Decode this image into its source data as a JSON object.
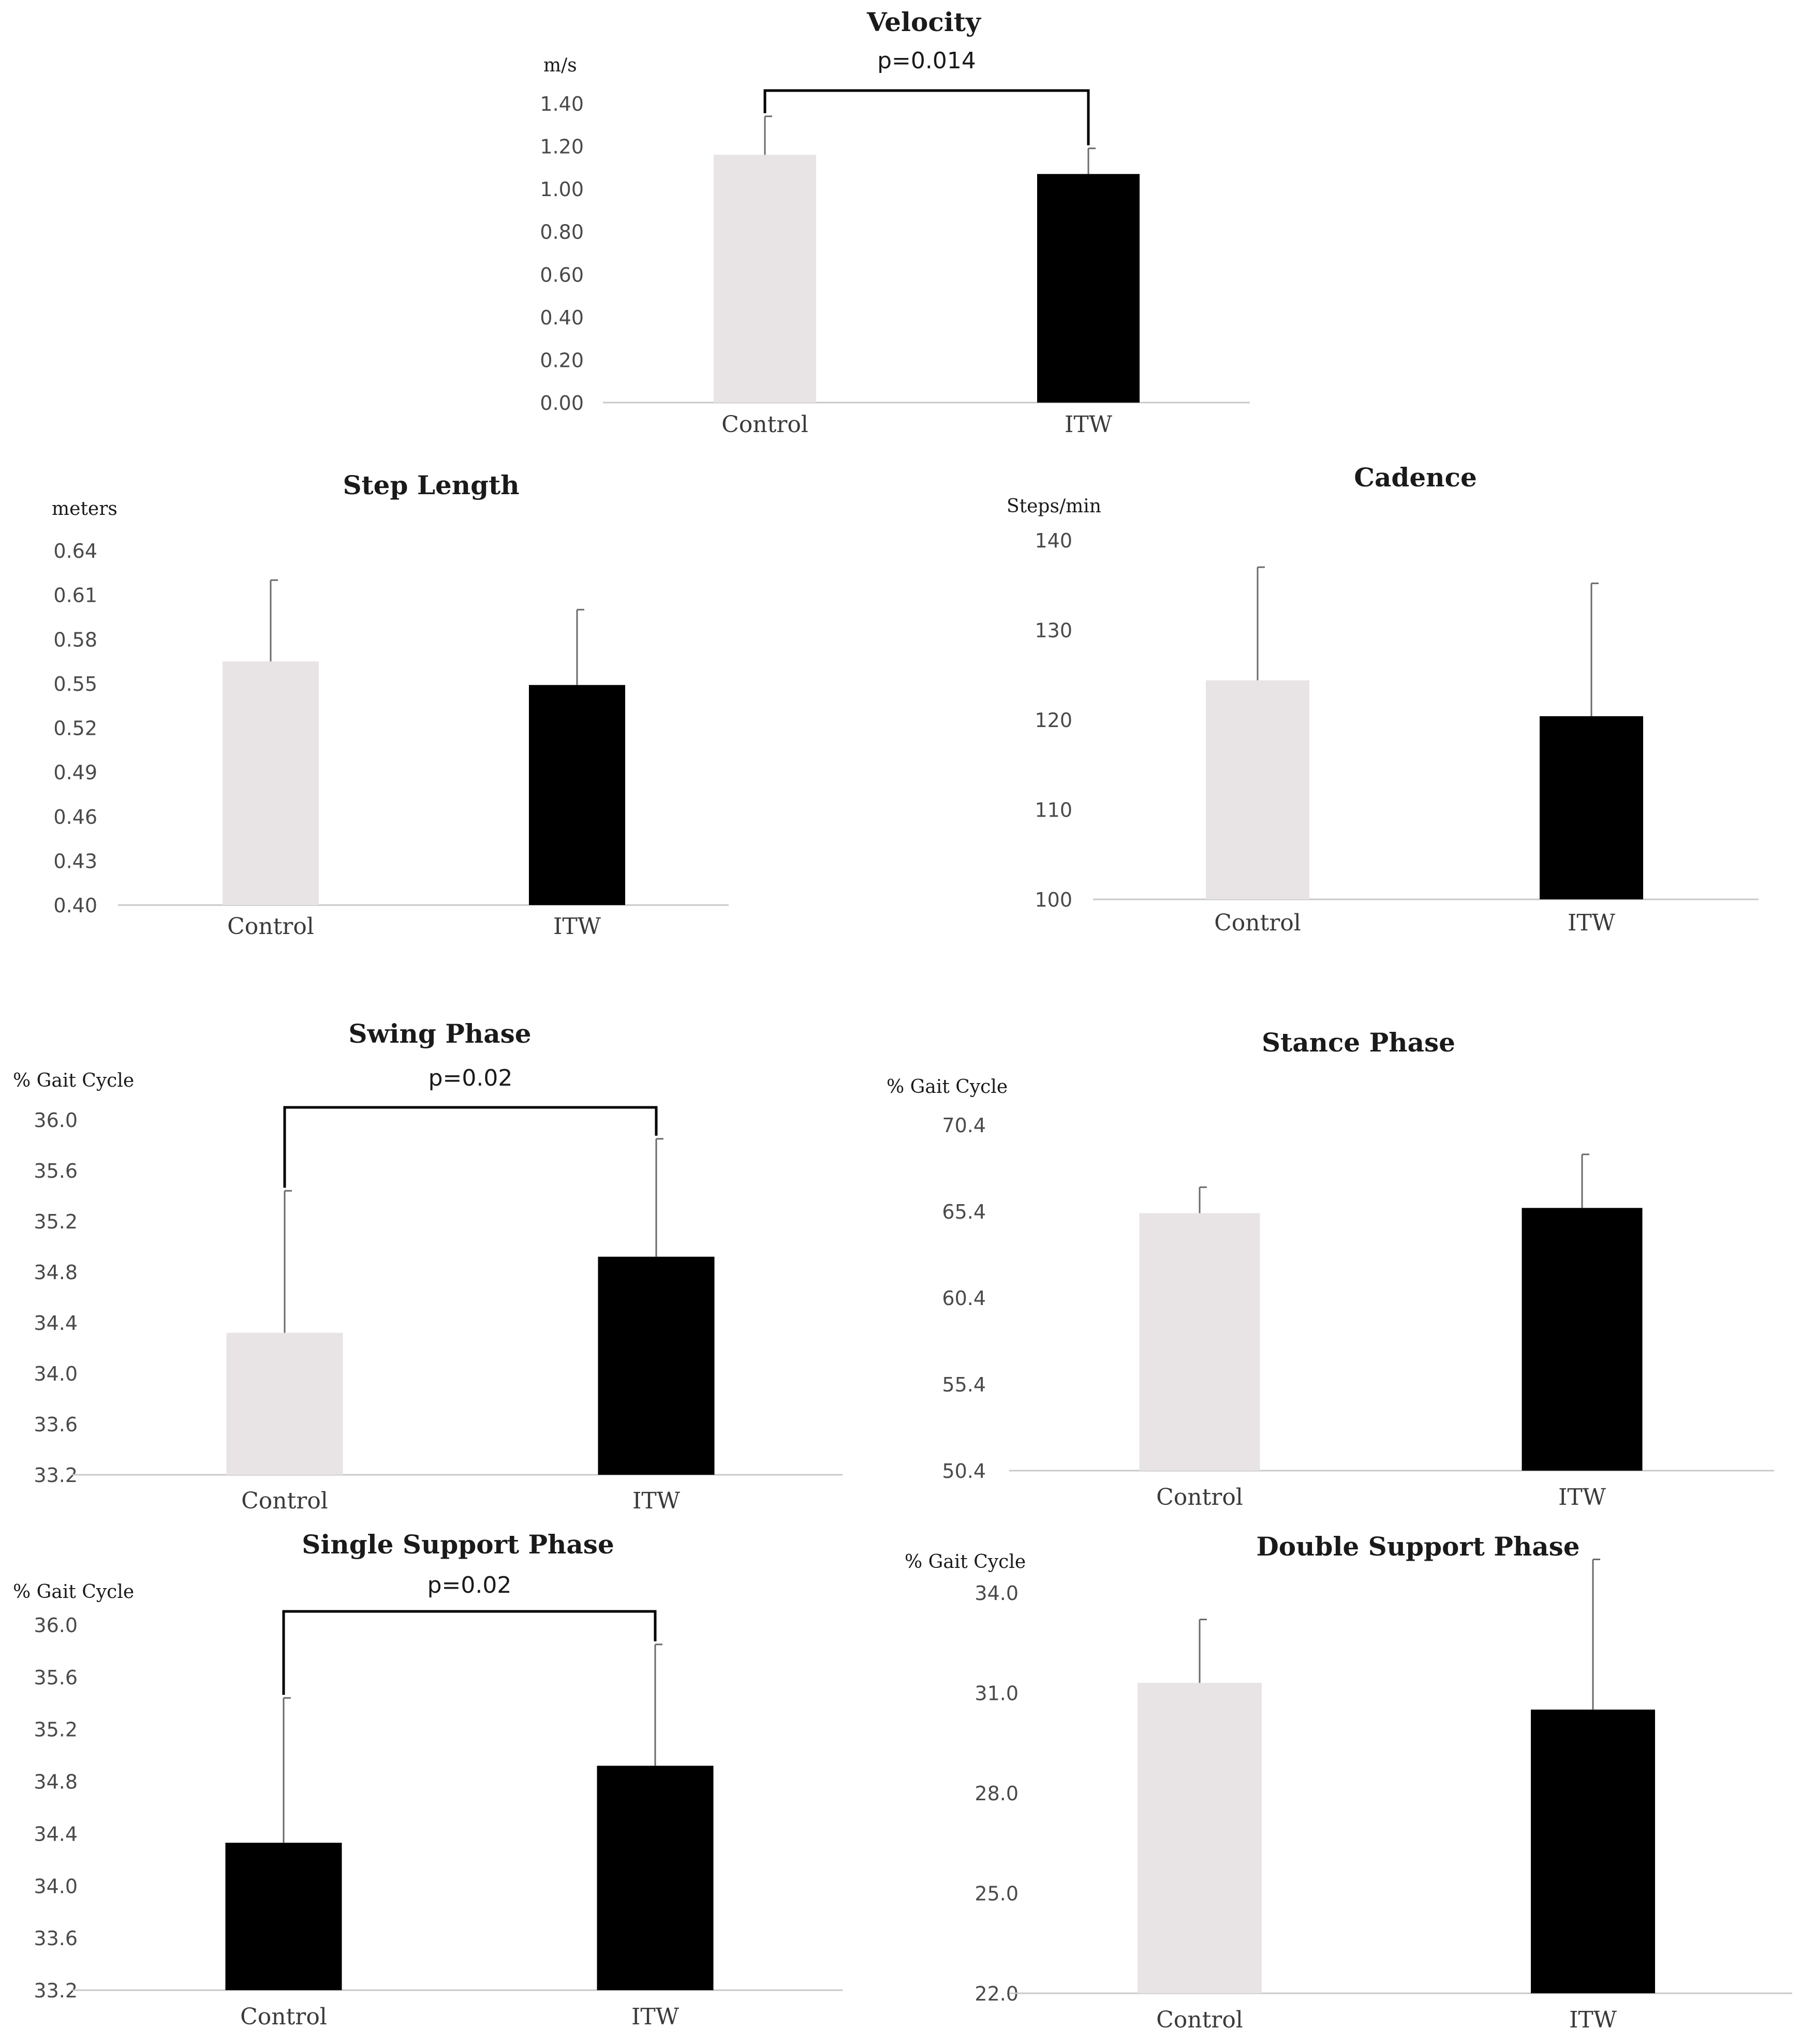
{
  "chart_data": [
    {
      "type": "bar",
      "title": "Velocity",
      "ylabel": "m/s",
      "categories": [
        "Control",
        "ITW"
      ],
      "values": [
        1.16,
        1.07
      ],
      "errors": [
        0.18,
        0.12
      ],
      "ylim": [
        0.0,
        1.4
      ],
      "yticks": [
        "0.00",
        "0.20",
        "0.40",
        "0.60",
        "0.80",
        "1.00",
        "1.20",
        "1.40"
      ],
      "colors": [
        "#e8e4e5",
        "#000000"
      ],
      "significance": {
        "label": "p=0.014"
      }
    },
    {
      "type": "bar",
      "title": "Step Length",
      "ylabel": "meters",
      "categories": [
        "Control",
        "ITW"
      ],
      "values": [
        0.565,
        0.549
      ],
      "errors": [
        0.055,
        0.051
      ],
      "ylim": [
        0.4,
        0.64
      ],
      "yticks": [
        "0.40",
        "0.43",
        "0.46",
        "0.49",
        "0.52",
        "0.55",
        "0.58",
        "0.61",
        "0.64"
      ],
      "colors": [
        "#e8e4e5",
        "#000000"
      ],
      "significance": null
    },
    {
      "type": "bar",
      "title": "Cadence",
      "ylabel": "Steps/min",
      "categories": [
        "Control",
        "ITW"
      ],
      "values": [
        124.4,
        120.4
      ],
      "errors": [
        12.6,
        14.8
      ],
      "ylim": [
        100,
        140
      ],
      "yticks": [
        "100",
        "110",
        "120",
        "130",
        "140"
      ],
      "colors": [
        "#e8e4e5",
        "#000000"
      ],
      "significance": null
    },
    {
      "type": "bar",
      "title": "Swing Phase",
      "ylabel": "% Gait Cycle",
      "categories": [
        "Control",
        "ITW"
      ],
      "values": [
        34.32,
        34.92
      ],
      "errors": [
        1.12,
        0.93
      ],
      "ylim": [
        33.2,
        36.0
      ],
      "yticks": [
        "33.2",
        "33.6",
        "34.0",
        "34.4",
        "34.8",
        "35.2",
        "35.6",
        "36.0"
      ],
      "colors": [
        "#e8e4e5",
        "#000000"
      ],
      "significance": {
        "label": "p=0.02"
      }
    },
    {
      "type": "bar",
      "title": "Stance Phase",
      "ylabel": "% Gait Cycle",
      "categories": [
        "Control",
        "ITW"
      ],
      "values": [
        65.3,
        65.6
      ],
      "errors": [
        1.5,
        3.1
      ],
      "ylim": [
        50.4,
        70.4
      ],
      "yticks": [
        "50.4",
        "55.4",
        "60.4",
        "65.4",
        "70.4"
      ],
      "colors": [
        "#e8e4e5",
        "#000000"
      ],
      "significance": null
    },
    {
      "type": "bar",
      "title": "Single Support Phase",
      "ylabel": "% Gait Cycle",
      "categories": [
        "Control",
        "ITW"
      ],
      "values": [
        34.33,
        34.92
      ],
      "errors": [
        1.11,
        0.93
      ],
      "ylim": [
        33.2,
        36.0
      ],
      "yticks": [
        "33.2",
        "33.6",
        "34.0",
        "34.4",
        "34.8",
        "35.2",
        "35.6",
        "36.0"
      ],
      "colors": [
        "#000000",
        "#000000"
      ],
      "significance": {
        "label": "p=0.02"
      }
    },
    {
      "type": "bar",
      "title": "Double Support Phase",
      "ylabel": "% Gait Cycle",
      "categories": [
        "Control",
        "ITW"
      ],
      "values": [
        31.3,
        30.5
      ],
      "errors": [
        1.9,
        4.5
      ],
      "ylim": [
        22.0,
        34.0
      ],
      "yticks": [
        "22.0",
        "25.0",
        "28.0",
        "31.0",
        "34.0"
      ],
      "colors": [
        "#e8e4e5",
        "#000000"
      ],
      "significance": null
    }
  ]
}
